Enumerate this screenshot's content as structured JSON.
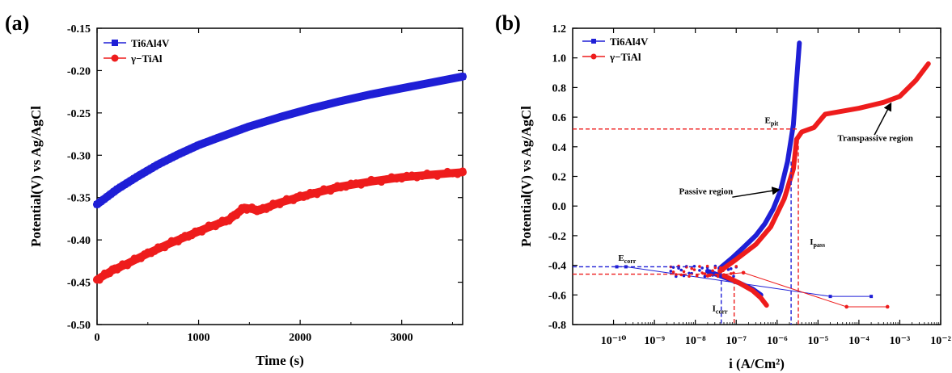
{
  "figure": {
    "panel_a_label": "(a)",
    "panel_b_label": "(b)"
  },
  "colors": {
    "ti6al4v": "#1f1fd6",
    "gamma_tial": "#ee1c1c"
  },
  "chart_data": [
    {
      "type": "line",
      "panel": "(a)",
      "xlabel": "Time (s)",
      "ylabel": "Potential(V) vs Ag/AgCl",
      "xlim": [
        0,
        3600
      ],
      "ylim": [
        -0.5,
        -0.15
      ],
      "xticks": [
        0,
        1000,
        2000,
        3000
      ],
      "yticks": [
        -0.5,
        -0.45,
        -0.4,
        -0.35,
        -0.3,
        -0.25,
        -0.2,
        -0.15
      ],
      "legend_position": "top-left",
      "grid": false,
      "series": [
        {
          "name": "Ti6Al4V",
          "color": "#1f1fd6",
          "marker": "square",
          "x": [
            0,
            200,
            400,
            600,
            800,
            1000,
            1200,
            1500,
            1800,
            2100,
            2400,
            2700,
            3000,
            3300,
            3600
          ],
          "y": [
            -0.358,
            -0.34,
            -0.325,
            -0.311,
            -0.299,
            -0.288,
            -0.279,
            -0.266,
            -0.255,
            -0.245,
            -0.236,
            -0.228,
            -0.221,
            -0.214,
            -0.207
          ]
        },
        {
          "name": "γ−TiAl",
          "color": "#ee1c1c",
          "marker": "circle",
          "x": [
            0,
            150,
            300,
            500,
            700,
            900,
            1100,
            1300,
            1450,
            1600,
            1800,
            2000,
            2200,
            2400,
            2700,
            3000,
            3300,
            3600
          ],
          "y": [
            -0.447,
            -0.436,
            -0.428,
            -0.416,
            -0.405,
            -0.395,
            -0.385,
            -0.376,
            -0.362,
            -0.365,
            -0.356,
            -0.349,
            -0.343,
            -0.337,
            -0.331,
            -0.326,
            -0.323,
            -0.32
          ]
        }
      ]
    },
    {
      "type": "line",
      "panel": "(b)",
      "xlabel": "i (A/Cm²)",
      "ylabel": "Potential(V) vs Ag/AgCl",
      "xscale": "log",
      "xlim": [
        1e-11,
        0.01
      ],
      "ylim": [
        -0.8,
        1.2
      ],
      "xticks": [
        "10⁻¹⁰",
        "10⁻⁹",
        "10⁻⁸",
        "10⁻⁷",
        "10⁻⁶",
        "10⁻⁵",
        "10⁻⁴",
        "10⁻³",
        "10⁻²"
      ],
      "yticks": [
        -0.8,
        -0.6,
        -0.4,
        -0.2,
        0.0,
        0.2,
        0.4,
        0.6,
        0.8,
        1.0,
        1.2
      ],
      "legend_position": "top-left",
      "grid": false,
      "series": [
        {
          "name": "Ti6Al4V",
          "color": "#1f1fd6",
          "anodic": {
            "x": [
              4e-08,
              8e-08,
              1.5e-07,
              3e-07,
              5e-07,
              8e-07,
              1.2e-06,
              1.8e-06,
              2.5e-06,
              3e-06,
              3.5e-06
            ],
            "y": [
              -0.42,
              -0.35,
              -0.28,
              -0.2,
              -0.12,
              -0.02,
              0.1,
              0.3,
              0.55,
              0.85,
              1.1
            ]
          },
          "cathodic": {
            "x": [
              2e-08,
              5e-08,
              1.2e-07,
              2.5e-07,
              4e-07
            ],
            "y": [
              -0.44,
              -0.48,
              -0.52,
              -0.56,
              -0.6
            ]
          },
          "tail": {
            "x": [
              1.2e-10,
              2e-10,
              2e-05,
              0.0002
            ],
            "y": [
              -0.41,
              -0.41,
              -0.61,
              -0.61
            ]
          }
        },
        {
          "name": "γ−TiAl",
          "color": "#ee1c1c",
          "anodic": {
            "x": [
              4e-08,
              1e-07,
              3e-07,
              7e-07,
              1.5e-06,
              2.5e-06,
              3e-06,
              4e-06,
              8e-06,
              1.5e-05,
              0.0001,
              0.0004,
              0.001,
              0.0025,
              0.005
            ],
            "y": [
              -0.44,
              -0.36,
              -0.26,
              -0.14,
              0.05,
              0.25,
              0.45,
              0.5,
              0.53,
              0.62,
              0.66,
              0.7,
              0.74,
              0.85,
              0.96
            ]
          },
          "cathodic": {
            "x": [
              5e-08,
              1.2e-07,
              2.5e-07,
              4e-07,
              5.5e-07
            ],
            "y": [
              -0.47,
              -0.52,
              -0.57,
              -0.62,
              -0.67
            ]
          },
          "tail": {
            "x": [
              2e-08,
              1.5e-07,
              5e-05,
              0.0005
            ],
            "y": [
              -0.47,
              -0.45,
              -0.68,
              -0.68
            ]
          }
        }
      ],
      "annotations": [
        {
          "text": "E",
          "sub": "pit",
          "x": 5e-07,
          "y": 0.56
        },
        {
          "text": "E",
          "sub": "corr",
          "x": 1.3e-10,
          "y": -0.37
        },
        {
          "text": "I",
          "sub": "corr",
          "x": 2.6e-08,
          "y": -0.71
        },
        {
          "text": "I",
          "sub": "pass",
          "x": 6.3e-06,
          "y": -0.26
        },
        {
          "text": "Passive region",
          "x": 4e-09,
          "y": 0.08
        },
        {
          "text": "Transpassive region",
          "x": 3e-05,
          "y": 0.44
        }
      ],
      "reference_lines": {
        "E_pit": 0.52,
        "E_corr_ti6al4v": -0.41,
        "E_corr_gamma": -0.46,
        "I_corr_ti6al4v": 4.3e-08,
        "I_corr_gamma": 8.9e-08,
        "I_pass_ti6al4v": 2.2e-06,
        "I_pass_gamma": 3.3e-06
      }
    }
  ]
}
